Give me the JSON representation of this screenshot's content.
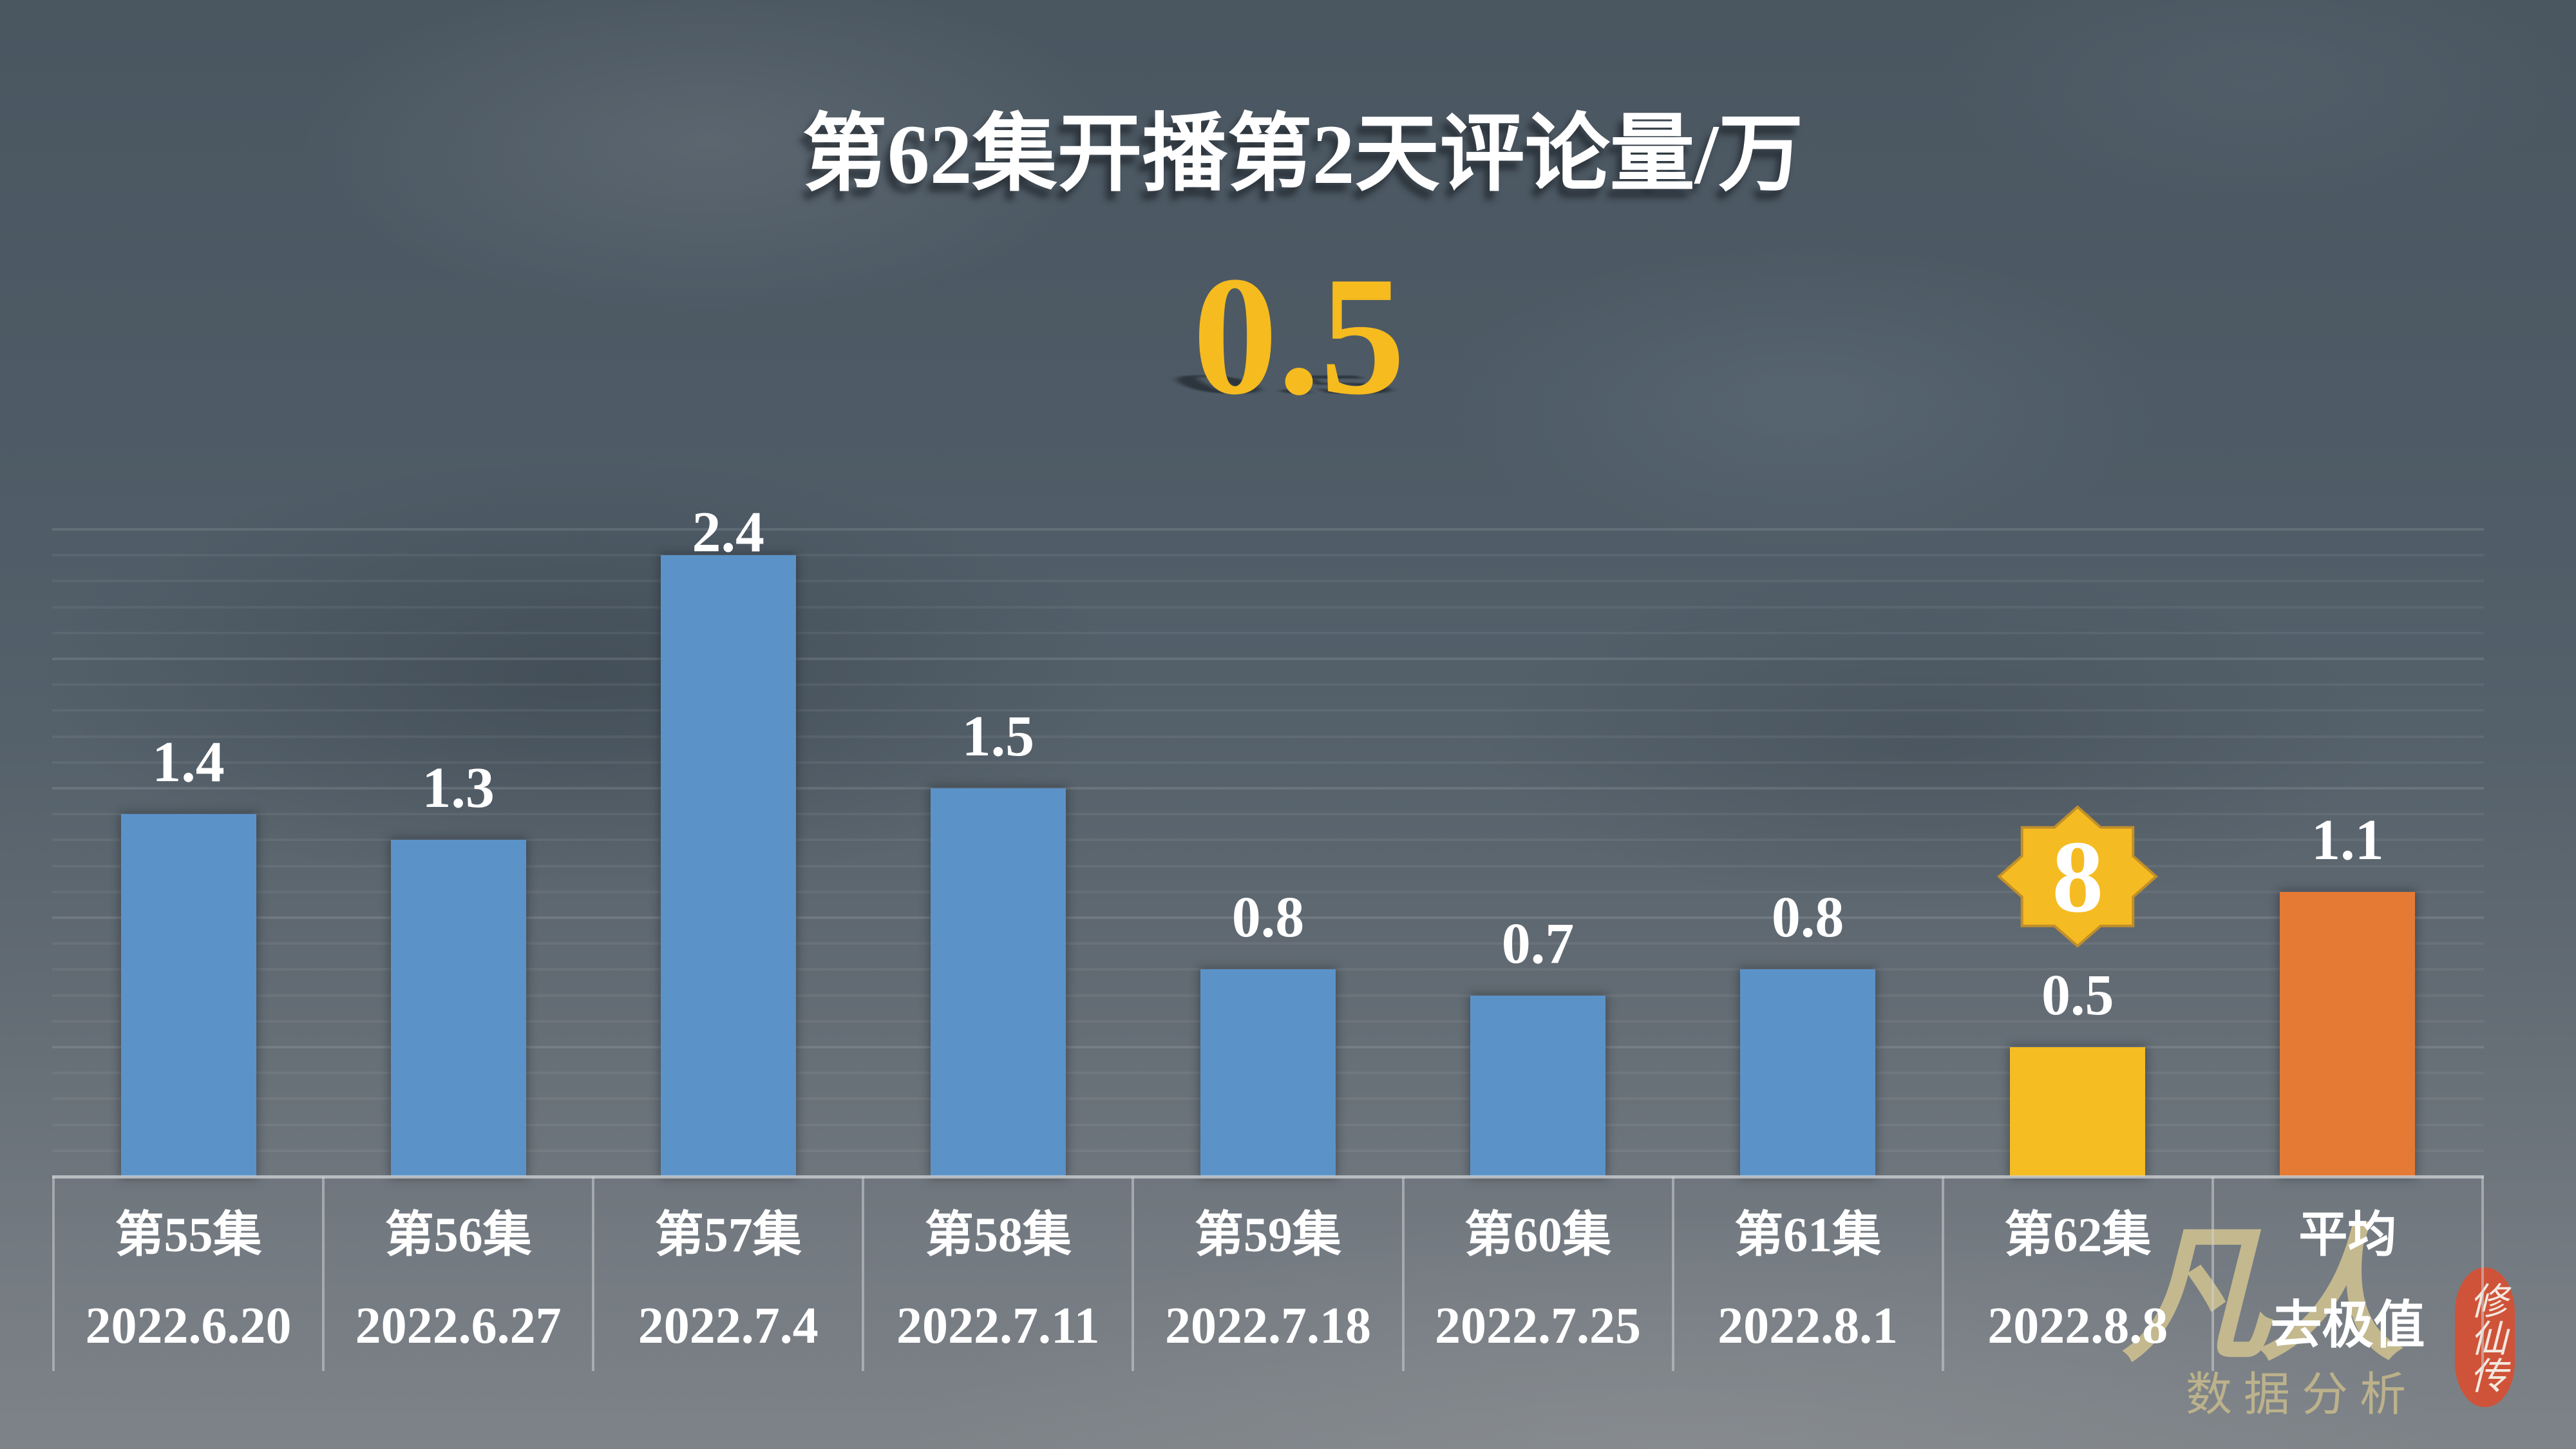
{
  "header": {
    "title": "第62集开播第2天评论量/万",
    "headline_value": "0.5"
  },
  "chart_data": {
    "type": "bar",
    "title": "第62集开播第2天评论量/万",
    "subtitle": "0.5",
    "xlabel": "",
    "ylabel": "评论量/万",
    "categories": [
      "第55集",
      "第56集",
      "第57集",
      "第58集",
      "第59集",
      "第60集",
      "第61集",
      "第62集",
      "平均"
    ],
    "category_sublabels": [
      "2022.6.20",
      "2022.6.27",
      "2022.7.4",
      "2022.7.11",
      "2022.7.18",
      "2022.7.25",
      "2022.8.1",
      "2022.8.8",
      "去极值"
    ],
    "values": [
      1.4,
      1.3,
      2.4,
      1.5,
      0.8,
      0.7,
      0.8,
      0.5,
      1.1
    ],
    "value_labels": [
      "1.4",
      "1.3",
      "2.4",
      "1.5",
      "0.8",
      "0.7",
      "0.8",
      "0.5",
      "1.1"
    ],
    "bar_colors": [
      "#5b93c9",
      "#5b93c9",
      "#5b93c9",
      "#5b93c9",
      "#5b93c9",
      "#5b93c9",
      "#5b93c9",
      "#f5bd22",
      "#e57a34"
    ],
    "ylim": [
      0,
      2.5
    ],
    "grid": true,
    "grid_step": 0.1,
    "legend": null,
    "annotations": [
      {
        "type": "rank-badge",
        "category_index": 7,
        "text": "8",
        "shape": "8-point-star",
        "color": "#f5bb22"
      }
    ]
  },
  "colors": {
    "title": "#ffffff",
    "headline": "#f5bb1f",
    "bar_default": "#5b93c9",
    "bar_highlight": "#f5bd22",
    "bar_average": "#e57a34",
    "badge_fill": "#f5bb22",
    "badge_stroke": "#c08f2a",
    "seal": "#cf5339"
  },
  "watermark": {
    "brand": "凡人",
    "seal": "修仙传",
    "subtitle": "数据分析"
  }
}
